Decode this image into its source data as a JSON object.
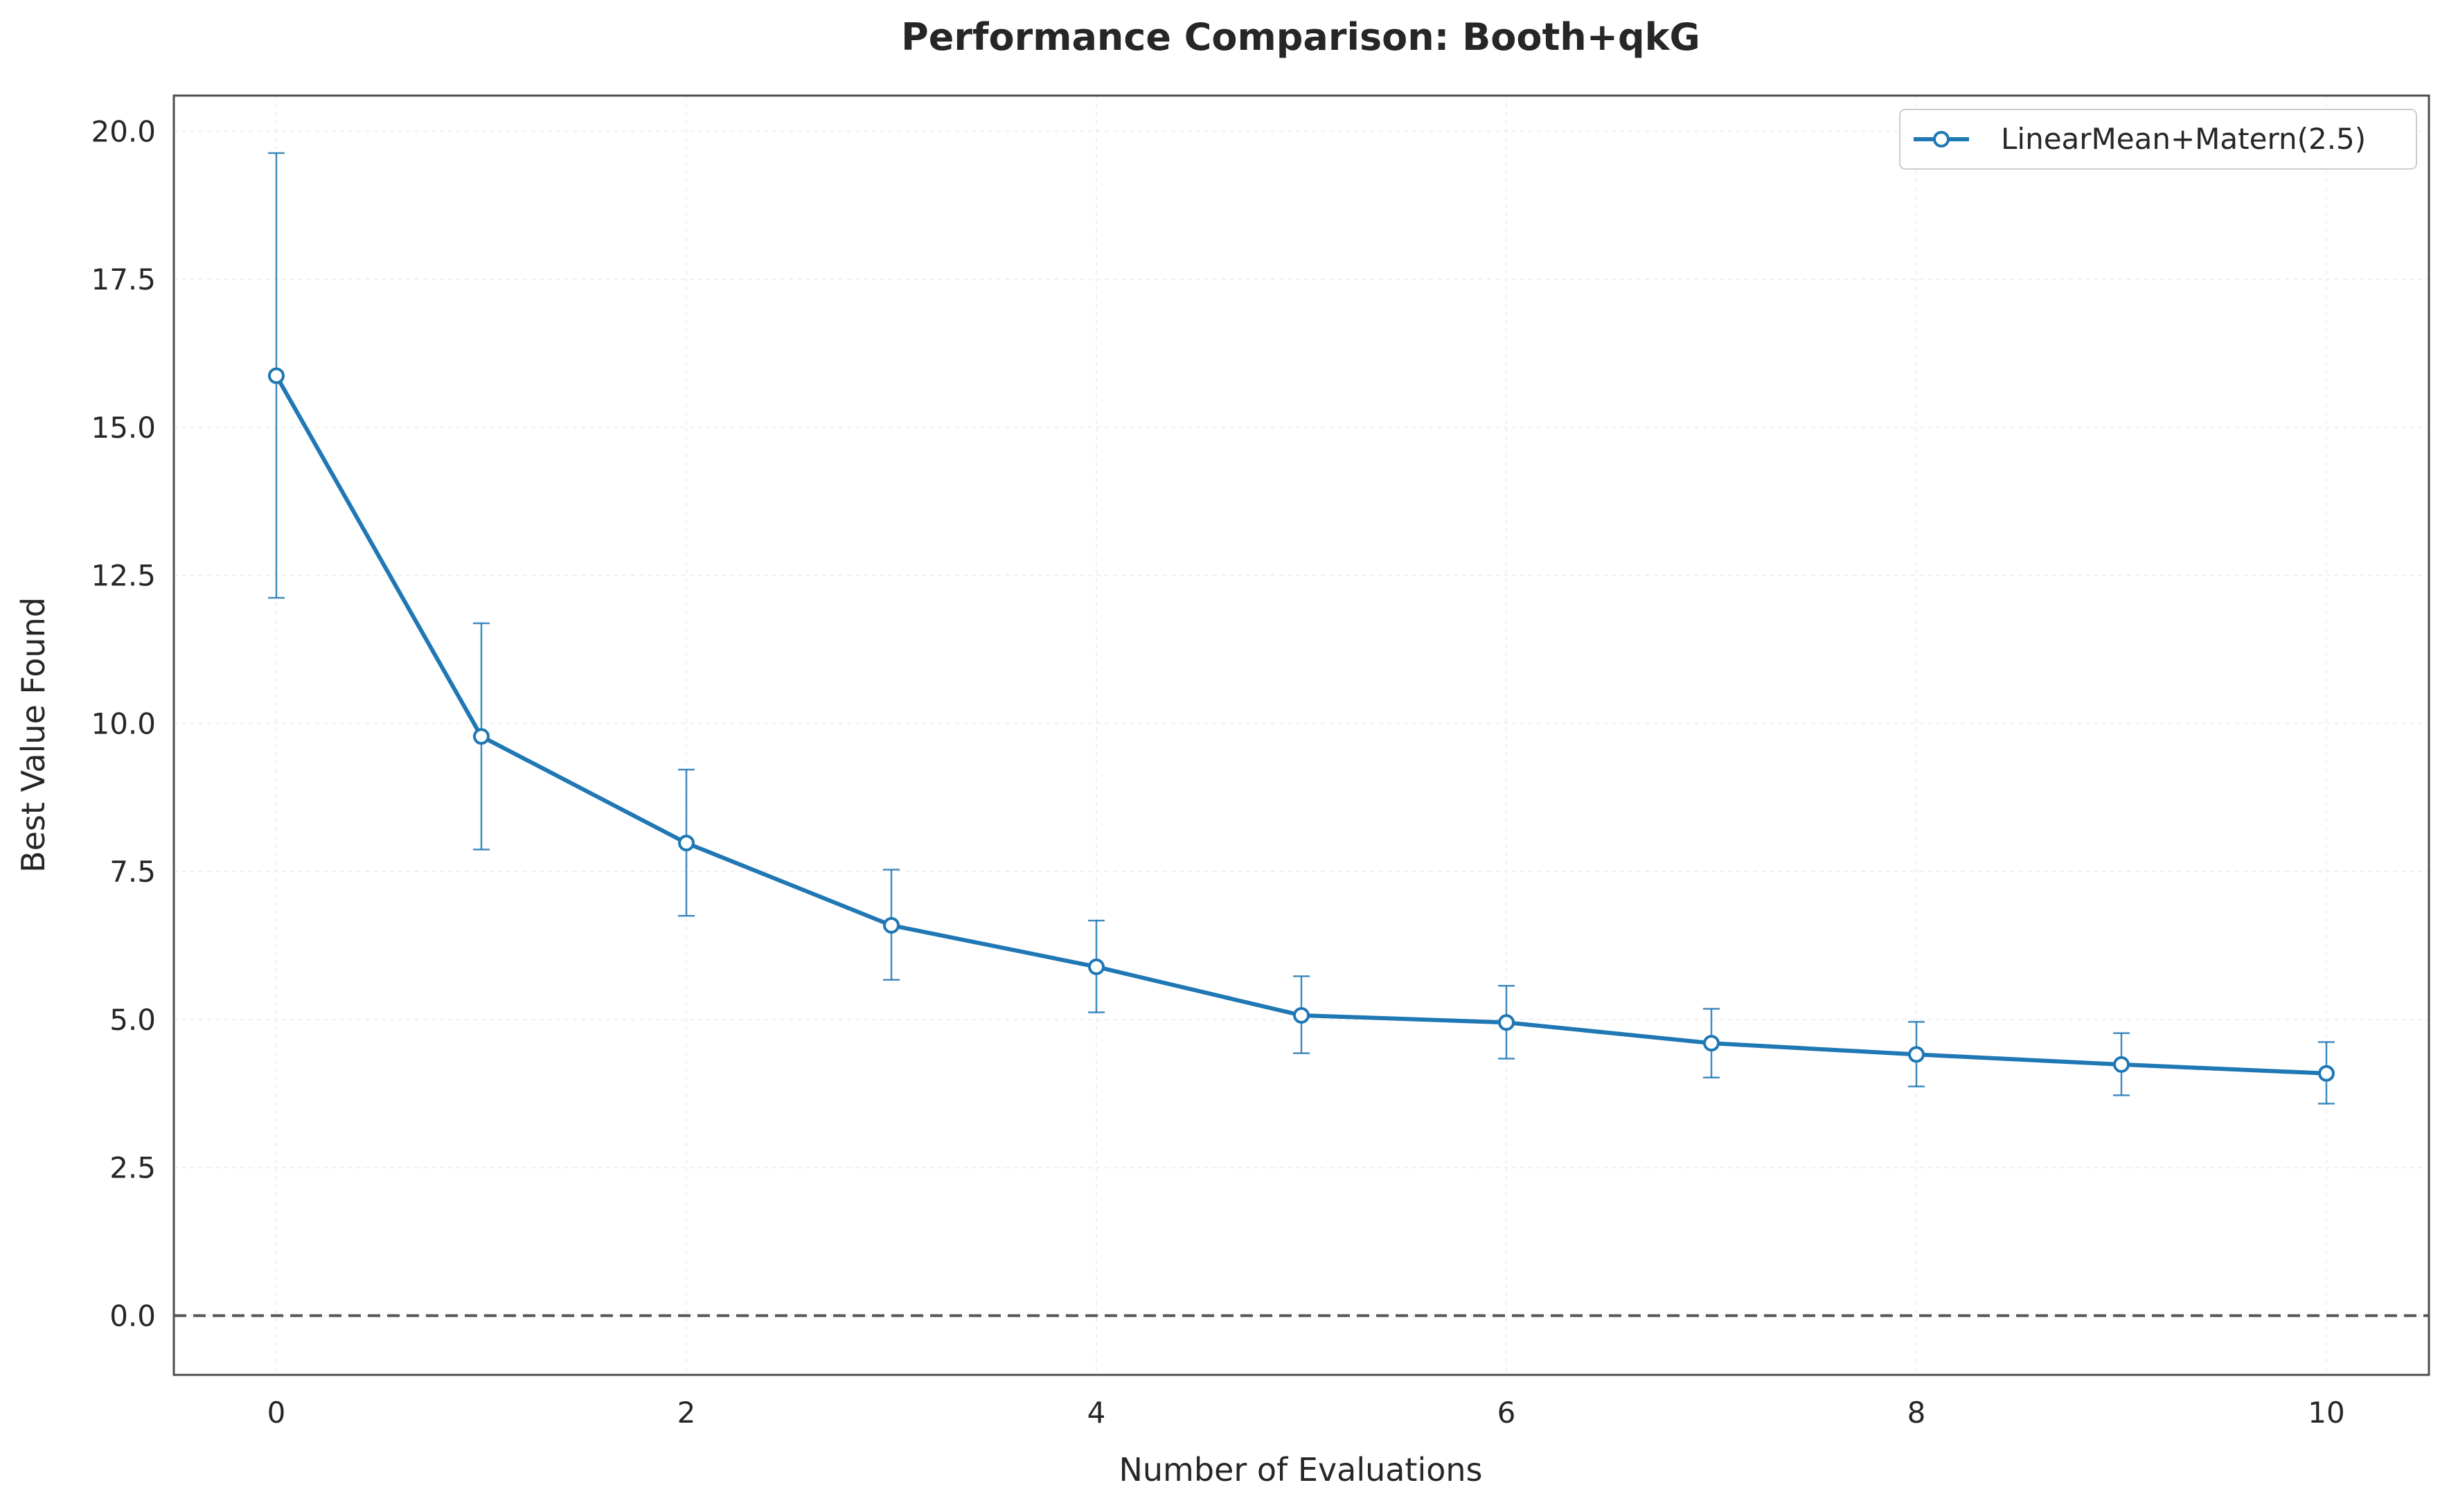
{
  "chart_data": {
    "type": "line",
    "title": "Performance Comparison: Booth+qkG",
    "xlabel": "Number of Evaluations",
    "ylabel": "Best Value Found",
    "xlim": [
      -0.5,
      10.5
    ],
    "ylim": [
      -1.0,
      20.6
    ],
    "xticks": [
      0,
      2,
      4,
      6,
      8,
      10
    ],
    "xtick_labels": [
      "0",
      "2",
      "4",
      "6",
      "8",
      "10"
    ],
    "yticks": [
      0,
      2.5,
      5,
      7.5,
      10,
      12.5,
      15,
      17.5,
      20
    ],
    "ytick_labels": [
      "0.0",
      "2.5",
      "5.0",
      "7.5",
      "10.0",
      "12.5",
      "15.0",
      "17.5",
      "20.0"
    ],
    "grid": true,
    "legend_position": "top-right",
    "reference_line": {
      "y": 0.0,
      "style": "dashed",
      "color": "#555555"
    },
    "series": [
      {
        "name": "LinearMean+Matern(2.5)",
        "color": "#1f77b4",
        "marker": "open-circle",
        "x": [
          0,
          1,
          2,
          3,
          4,
          5,
          6,
          7,
          8,
          9,
          10
        ],
        "y": [
          15.87,
          9.78,
          7.98,
          6.59,
          5.89,
          5.07,
          4.95,
          4.6,
          4.41,
          4.24,
          4.09
        ],
        "err_low": [
          12.12,
          7.87,
          6.75,
          5.67,
          5.12,
          4.43,
          4.34,
          4.02,
          3.87,
          3.72,
          3.58
        ],
        "err_high": [
          19.63,
          11.69,
          9.22,
          7.53,
          6.67,
          5.73,
          5.57,
          5.18,
          4.96,
          4.77,
          4.62
        ]
      }
    ]
  }
}
